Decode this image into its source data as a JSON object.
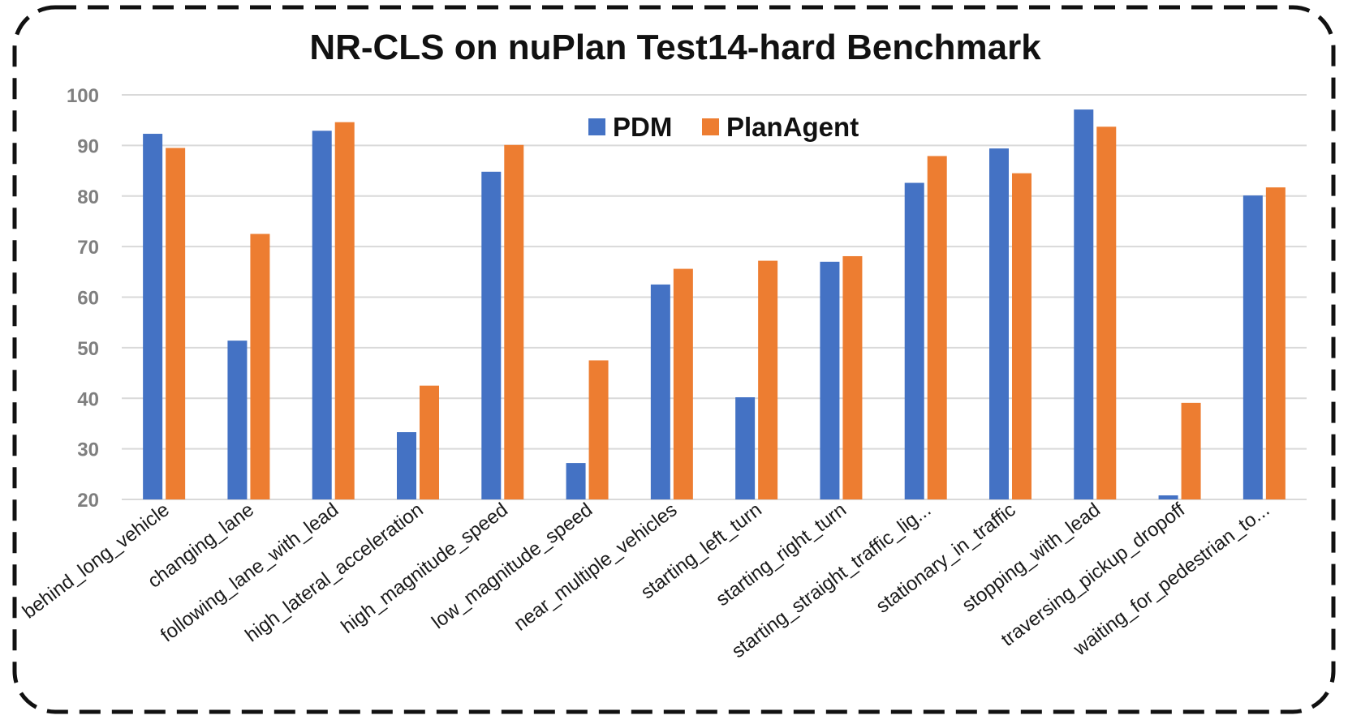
{
  "chart_data": {
    "type": "bar",
    "title": "NR-CLS on nuPlan Test14-hard Benchmark",
    "xlabel": "",
    "ylabel": "",
    "ylim": [
      20,
      100
    ],
    "yticks": [
      20,
      30,
      40,
      50,
      60,
      70,
      80,
      90,
      100
    ],
    "grid": true,
    "legend_position": "top-center",
    "categories": [
      "behind_long_vehicle",
      "changing_lane",
      "following_lane_with_lead",
      "high_lateral_acceleration",
      "high_magnitude_speed",
      "low_magnitude_speed",
      "near_multiple_vehicles",
      "starting_left_turn",
      "starting_right_turn",
      "starting_straight_traffic_lig...",
      "stationary_in_traffic",
      "stopping_with_lead",
      "traversing_pickup_dropoff",
      "waiting_for_pedestrian_to..."
    ],
    "series": [
      {
        "name": "PDM",
        "color": "#4472C4",
        "values": [
          92.3,
          51.4,
          92.9,
          33.3,
          84.8,
          27.2,
          62.5,
          40.2,
          67.0,
          82.6,
          89.4,
          97.1,
          20.8,
          80.1
        ]
      },
      {
        "name": "PlanAgent",
        "color": "#ED7D31",
        "values": [
          89.5,
          72.5,
          94.6,
          42.5,
          90.1,
          47.5,
          65.6,
          67.2,
          68.1,
          87.9,
          84.5,
          93.7,
          39.1,
          81.7
        ]
      }
    ]
  }
}
